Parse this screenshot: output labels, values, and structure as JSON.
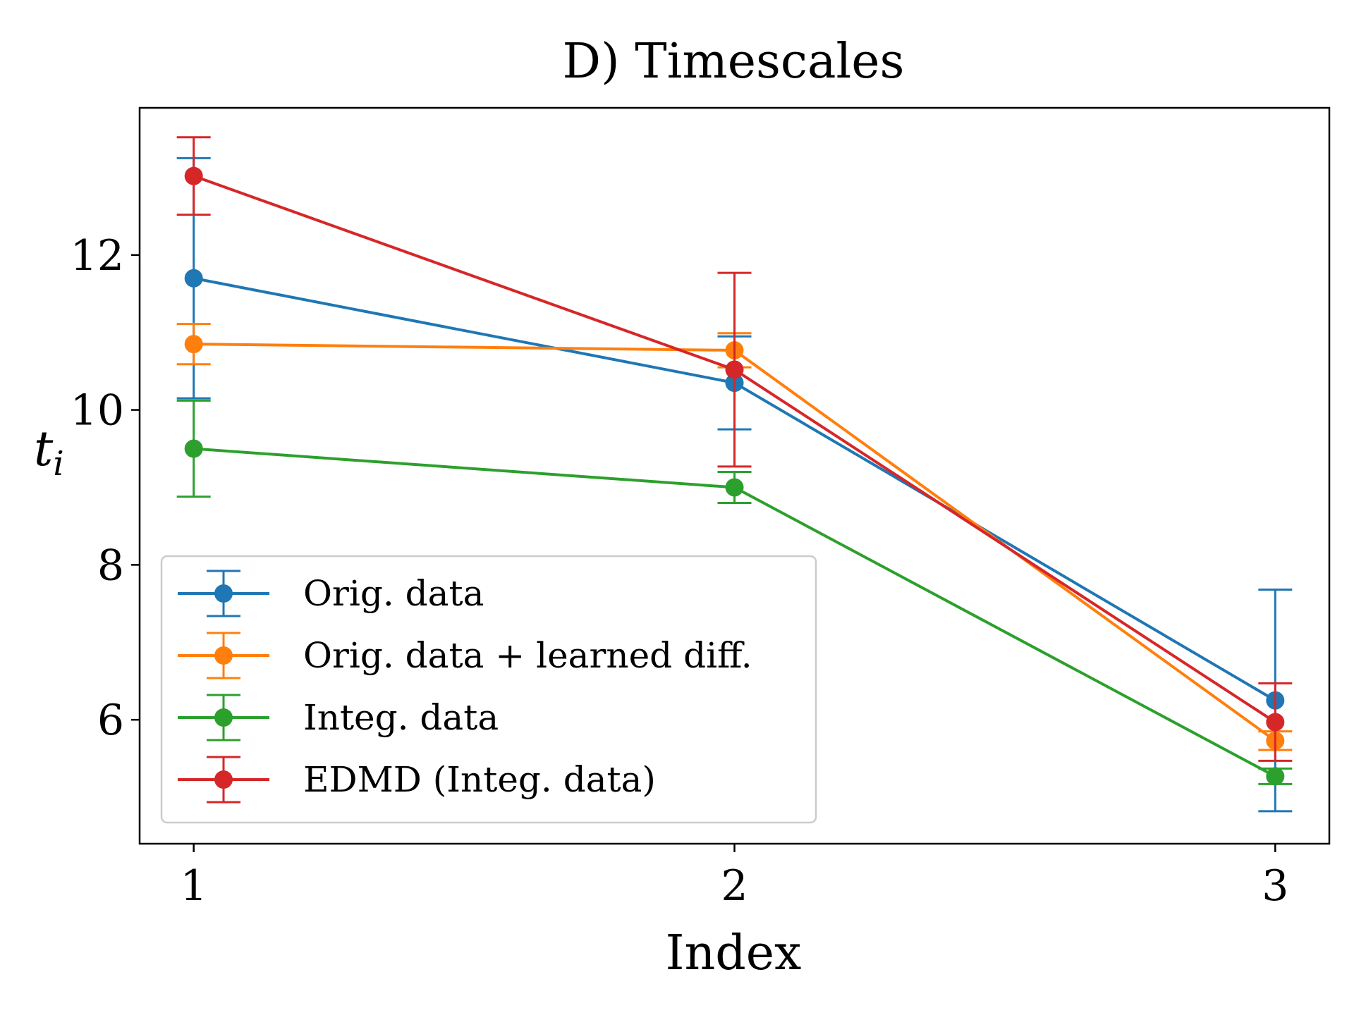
{
  "chart_data": {
    "type": "line",
    "title": "D) Timescales",
    "xlabel": "Index",
    "ylabel_main": "t",
    "ylabel_sub": "i",
    "x": [
      1,
      2,
      3
    ],
    "x_ticks": [
      "1",
      "2",
      "3"
    ],
    "y_ticks": [
      "6",
      "8",
      "10",
      "12"
    ],
    "xlim": [
      0.9,
      3.1
    ],
    "ylim": [
      4.4,
      13.9
    ],
    "grid": false,
    "legend_position": "lower-left",
    "series": [
      {
        "name": "Orig. data",
        "color": "#1f77b4",
        "values": [
          11.7,
          10.35,
          6.25
        ],
        "errors": [
          1.55,
          0.6,
          1.43
        ]
      },
      {
        "name": "Orig. data + learned diff.",
        "color": "#ff7f0e",
        "values": [
          10.85,
          10.77,
          5.73
        ],
        "errors": [
          0.26,
          0.22,
          0.12
        ]
      },
      {
        "name": "Integ. data",
        "color": "#2ca02c",
        "values": [
          9.5,
          9.0,
          5.27
        ],
        "errors": [
          0.62,
          0.2,
          0.1
        ]
      },
      {
        "name": "EDMD (Integ. data)",
        "color": "#d62728",
        "values": [
          13.02,
          10.52,
          5.97
        ],
        "errors": [
          0.5,
          1.25,
          0.5
        ]
      }
    ]
  }
}
